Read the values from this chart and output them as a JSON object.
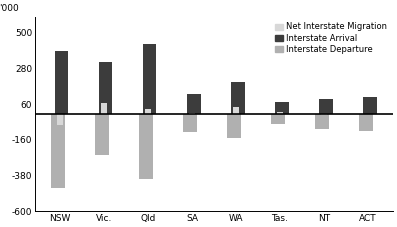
{
  "categories": [
    "NSW",
    "Vic.",
    "Qld",
    "SA",
    "WA",
    "Tas.",
    "NT",
    "ACT"
  ],
  "arrivals": [
    390,
    320,
    430,
    120,
    195,
    75,
    90,
    105
  ],
  "departures": [
    -460,
    -255,
    -400,
    -115,
    -150,
    -65,
    -95,
    -105
  ],
  "net": [
    -70,
    65,
    30,
    5,
    45,
    10,
    -5,
    0
  ],
  "arrival_color": "#3c3c3c",
  "departure_color": "#b0b0b0",
  "net_color": "#d8d8d8",
  "zero_line_color": "#000000",
  "ylim": [
    -600,
    600
  ],
  "yticks": [
    -600,
    -380,
    -160,
    60,
    280,
    500
  ],
  "ylabel": "'000",
  "bar_width": 0.28,
  "legend_labels": [
    "Net Interstate Migration",
    "Interstate Arrival",
    "Interstate Departure"
  ],
  "background_color": "#ffffff",
  "axis_fontsize": 6.5,
  "legend_fontsize": 6.0
}
